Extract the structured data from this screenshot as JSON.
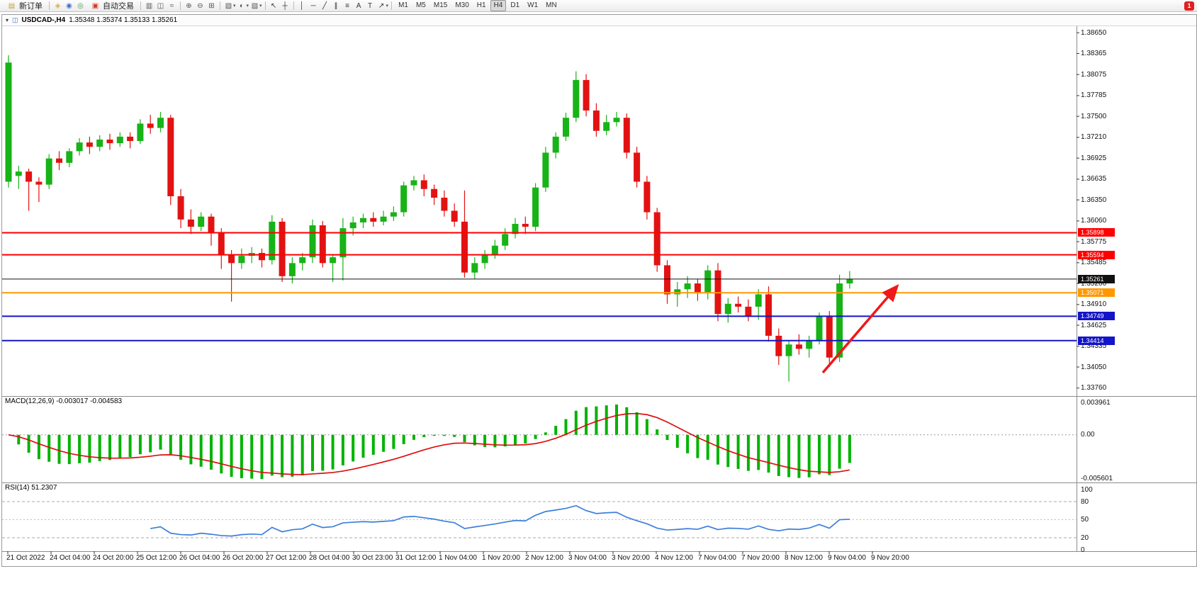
{
  "toolbar": {
    "items": [
      {
        "type": "button",
        "name": "new-order-button",
        "icon": "new-order-icon",
        "glyph": "▤",
        "color": "#c9a13b",
        "label": "新订单"
      },
      {
        "type": "sep"
      },
      {
        "type": "icon",
        "name": "metaeditor-icon",
        "glyph": "◈",
        "color": "#d9b23a"
      },
      {
        "type": "icon",
        "name": "market-watch-icon",
        "glyph": "◉",
        "color": "#3f6fd0"
      },
      {
        "type": "icon",
        "name": "data-window-icon",
        "glyph": "◎",
        "color": "#4a9e4a"
      },
      {
        "type": "button",
        "name": "autotrading-button",
        "icon": "autotrading-icon",
        "glyph": "▣",
        "color": "#d23c2a",
        "label": "自动交易"
      },
      {
        "type": "sep"
      },
      {
        "type": "icon",
        "name": "bar-chart-icon",
        "glyph": "▥",
        "color": "#555555"
      },
      {
        "type": "icon",
        "name": "candlestick-chart-icon",
        "glyph": "◫",
        "color": "#555555"
      },
      {
        "type": "icon",
        "name": "line-chart-icon",
        "glyph": "≈",
        "color": "#555555"
      },
      {
        "type": "sep"
      },
      {
        "type": "icon",
        "name": "zoom-in-icon",
        "glyph": "⊕",
        "color": "#555555"
      },
      {
        "type": "icon",
        "name": "zoom-out-icon",
        "glyph": "⊖",
        "color": "#555555"
      },
      {
        "type": "icon",
        "name": "tile-windows-icon",
        "glyph": "⊞",
        "color": "#555555"
      },
      {
        "type": "sep"
      },
      {
        "type": "icon",
        "name": "new-chart-icon",
        "glyph": "▧",
        "color": "#555555",
        "caret": true
      },
      {
        "type": "icon",
        "name": "period-icon",
        "glyph": "◐",
        "color": "#555555",
        "caret": true
      },
      {
        "type": "icon",
        "name": "templates-icon",
        "glyph": "▨",
        "color": "#555555",
        "caret": true
      },
      {
        "type": "sep"
      },
      {
        "type": "icon",
        "name": "cursor-icon",
        "glyph": "↖",
        "color": "#333333"
      },
      {
        "type": "icon",
        "name": "crosshair-icon",
        "glyph": "┼",
        "color": "#333333"
      },
      {
        "type": "sep"
      },
      {
        "type": "icon",
        "name": "vertical-line-icon",
        "glyph": "│",
        "color": "#333333"
      },
      {
        "type": "icon",
        "name": "horizontal-line-icon",
        "glyph": "─",
        "color": "#333333"
      },
      {
        "type": "icon",
        "name": "trendline-icon",
        "glyph": "╱",
        "color": "#333333"
      },
      {
        "type": "icon",
        "name": "channel-icon",
        "glyph": "∥",
        "color": "#333333"
      },
      {
        "type": "icon",
        "name": "fibonacci-icon",
        "glyph": "≡",
        "color": "#333333"
      },
      {
        "type": "icon",
        "name": "text-icon",
        "glyph": "A",
        "color": "#333333"
      },
      {
        "type": "icon",
        "name": "label-icon",
        "glyph": "T",
        "color": "#333333"
      },
      {
        "type": "icon",
        "name": "arrows-icon",
        "glyph": "↗",
        "color": "#333333",
        "caret": true
      },
      {
        "type": "sep"
      }
    ],
    "timeframes": [
      "M1",
      "M5",
      "M15",
      "M30",
      "H1",
      "H4",
      "D1",
      "W1",
      "MN"
    ],
    "active_timeframe": "H4",
    "notification": {
      "name": "alert-icon",
      "label": "1",
      "color": "#e02020"
    }
  },
  "chart": {
    "title": "USDCAD-,H4",
    "ohlc": "1.35348 1.35374 1.35133 1.35261"
  },
  "price_axis": {
    "ticks": [
      "1.38650",
      "1.38365",
      "1.38075",
      "1.37785",
      "1.37500",
      "1.37210",
      "1.36925",
      "1.36635",
      "1.36350",
      "1.36060",
      "1.35775",
      "1.35485",
      "1.35200",
      "1.34910",
      "1.34625",
      "1.34335",
      "1.34050",
      "1.33760"
    ]
  },
  "levels": [
    {
      "price": "1.35898",
      "value": 1.35898,
      "color": "#ff0000",
      "kind": "resistance-line"
    },
    {
      "price": "1.35594",
      "value": 1.35594,
      "color": "#ff0000",
      "kind": "resistance-line"
    },
    {
      "price": "1.35261",
      "value": 1.35261,
      "color": "#111111",
      "kind": "current-price-line"
    },
    {
      "price": "1.35071",
      "value": 1.35071,
      "color": "#ff9800",
      "kind": "pivot-line"
    },
    {
      "price": "1.34749",
      "value": 1.34749,
      "color": "#1414c8",
      "kind": "support-line"
    },
    {
      "price": "1.34414",
      "value": 1.34414,
      "color": "#1414c8",
      "kind": "support-line"
    }
  ],
  "indicators": {
    "macd": {
      "label": "MACD(12,26,9) -0.003017 -0.004583",
      "fast": 12,
      "slow": 26,
      "signal": 9,
      "value": -0.003017,
      "signal_value": -0.004583,
      "axis": [
        "0.003961",
        "0.00",
        "-0.005601"
      ],
      "range": [
        -0.005601,
        0.003961
      ],
      "histogram_color": "#00b300",
      "signal_color": "#dd0f0f"
    },
    "rsi": {
      "label": "RSI(14) 51.2307",
      "period": 14,
      "value": 51.2307,
      "axis": [
        "100",
        "80",
        "50",
        "20",
        "0"
      ],
      "levels": [
        80,
        50,
        20
      ],
      "line_color": "#3d7edb"
    }
  },
  "time_axis": [
    "21 Oct 2022",
    "24 Oct 04:00",
    "24 Oct 20:00",
    "25 Oct 12:00",
    "26 Oct 04:00",
    "26 Oct 20:00",
    "27 Oct 12:00",
    "28 Oct 04:00",
    "30 Oct 23:00",
    "31 Oct 12:00",
    "1 Nov 04:00",
    "1 Nov 20:00",
    "2 Nov 12:00",
    "3 Nov 04:00",
    "3 Nov 20:00",
    "4 Nov 12:00",
    "7 Nov 04:00",
    "7 Nov 20:00",
    "8 Nov 12:00",
    "9 Nov 04:00",
    "9 Nov 20:00"
  ],
  "chart_data": {
    "type": "candlestick",
    "symbol": "USDCAD",
    "timeframe": "H4",
    "ylim": [
      1.3367,
      1.3874
    ],
    "up_color": "#17b317",
    "down_color": "#e31212",
    "candles": [
      [
        1.366,
        1.3834,
        1.3652,
        1.3824
      ],
      [
        1.3668,
        1.3682,
        1.365,
        1.3674
      ],
      [
        1.3674,
        1.3678,
        1.362,
        1.366
      ],
      [
        1.366,
        1.3666,
        1.3632,
        1.3656
      ],
      [
        1.3656,
        1.3698,
        1.365,
        1.3692
      ],
      [
        1.3692,
        1.3702,
        1.3676,
        1.3686
      ],
      [
        1.3686,
        1.3706,
        1.368,
        1.3702
      ],
      [
        1.3702,
        1.372,
        1.3696,
        1.3714
      ],
      [
        1.3714,
        1.3722,
        1.3698,
        1.3708
      ],
      [
        1.3708,
        1.3724,
        1.3702,
        1.3718
      ],
      [
        1.3718,
        1.3726,
        1.3704,
        1.3713
      ],
      [
        1.3713,
        1.3728,
        1.3708,
        1.3722
      ],
      [
        1.3722,
        1.3728,
        1.3706,
        1.3716
      ],
      [
        1.3716,
        1.3746,
        1.3712,
        1.374
      ],
      [
        1.374,
        1.3752,
        1.3726,
        1.3734
      ],
      [
        1.3734,
        1.3756,
        1.3728,
        1.3748
      ],
      [
        1.3748,
        1.3752,
        1.3628,
        1.364
      ],
      [
        1.364,
        1.365,
        1.3596,
        1.3608
      ],
      [
        1.3608,
        1.3622,
        1.3588,
        1.3598
      ],
      [
        1.3598,
        1.3618,
        1.3592,
        1.3612
      ],
      [
        1.3612,
        1.3616,
        1.3572,
        1.359
      ],
      [
        1.359,
        1.3596,
        1.354,
        1.356
      ],
      [
        1.356,
        1.3566,
        1.3495,
        1.3548
      ],
      [
        1.3548,
        1.3568,
        1.354,
        1.3558
      ],
      [
        1.3558,
        1.357,
        1.3548,
        1.3562
      ],
      [
        1.3562,
        1.3568,
        1.3542,
        1.3552
      ],
      [
        1.3552,
        1.3614,
        1.3546,
        1.3605
      ],
      [
        1.3605,
        1.361,
        1.3522,
        1.353
      ],
      [
        1.353,
        1.3556,
        1.352,
        1.3548
      ],
      [
        1.3548,
        1.3562,
        1.3538,
        1.3556
      ],
      [
        1.3556,
        1.3608,
        1.3548,
        1.36
      ],
      [
        1.36,
        1.3606,
        1.3542,
        1.3548
      ],
      [
        1.3548,
        1.356,
        1.3522,
        1.3556
      ],
      [
        1.3556,
        1.361,
        1.3524,
        1.3596
      ],
      [
        1.3596,
        1.3612,
        1.3586,
        1.3604
      ],
      [
        1.3604,
        1.3616,
        1.3596,
        1.361
      ],
      [
        1.361,
        1.3618,
        1.3598,
        1.3605
      ],
      [
        1.3605,
        1.362,
        1.36,
        1.3612
      ],
      [
        1.3612,
        1.3626,
        1.3606,
        1.3618
      ],
      [
        1.3618,
        1.366,
        1.3612,
        1.3655
      ],
      [
        1.3655,
        1.3668,
        1.3648,
        1.3662
      ],
      [
        1.3662,
        1.367,
        1.364,
        1.365
      ],
      [
        1.365,
        1.3656,
        1.3628,
        1.3638
      ],
      [
        1.3638,
        1.3648,
        1.3612,
        1.362
      ],
      [
        1.362,
        1.363,
        1.3598,
        1.3605
      ],
      [
        1.3605,
        1.3648,
        1.3528,
        1.3535
      ],
      [
        1.3535,
        1.3556,
        1.3526,
        1.3548
      ],
      [
        1.3548,
        1.3566,
        1.354,
        1.356
      ],
      [
        1.356,
        1.358,
        1.3554,
        1.3572
      ],
      [
        1.3572,
        1.3596,
        1.3566,
        1.3588
      ],
      [
        1.3588,
        1.361,
        1.3582,
        1.3602
      ],
      [
        1.3602,
        1.3612,
        1.3588,
        1.3598
      ],
      [
        1.3598,
        1.3658,
        1.3592,
        1.3652
      ],
      [
        1.3652,
        1.3708,
        1.3646,
        1.37
      ],
      [
        1.37,
        1.3728,
        1.3692,
        1.3722
      ],
      [
        1.3722,
        1.3755,
        1.3716,
        1.3748
      ],
      [
        1.3748,
        1.3812,
        1.3742,
        1.38
      ],
      [
        1.38,
        1.3808,
        1.375,
        1.3758
      ],
      [
        1.3758,
        1.3768,
        1.3722,
        1.373
      ],
      [
        1.373,
        1.3752,
        1.3724,
        1.3742
      ],
      [
        1.3742,
        1.3756,
        1.3736,
        1.3748
      ],
      [
        1.3748,
        1.3754,
        1.3692,
        1.37
      ],
      [
        1.37,
        1.3708,
        1.3652,
        1.366
      ],
      [
        1.366,
        1.3668,
        1.3608,
        1.3618
      ],
      [
        1.3618,
        1.3624,
        1.3536,
        1.3545
      ],
      [
        1.3545,
        1.3552,
        1.3492,
        1.3505
      ],
      [
        1.3505,
        1.3522,
        1.3488,
        1.3512
      ],
      [
        1.3512,
        1.353,
        1.35,
        1.352
      ],
      [
        1.352,
        1.3526,
        1.3496,
        1.3508
      ],
      [
        1.3508,
        1.3545,
        1.3498,
        1.3538
      ],
      [
        1.3538,
        1.3548,
        1.3468,
        1.3478
      ],
      [
        1.3478,
        1.35,
        1.3466,
        1.3492
      ],
      [
        1.3492,
        1.3502,
        1.348,
        1.3488
      ],
      [
        1.3488,
        1.3498,
        1.3468,
        1.3475
      ],
      [
        1.3488,
        1.3512,
        1.347,
        1.3505
      ],
      [
        1.3505,
        1.3516,
        1.344,
        1.3448
      ],
      [
        1.3448,
        1.3458,
        1.3408,
        1.342
      ],
      [
        1.342,
        1.3442,
        1.3385,
        1.3436
      ],
      [
        1.3436,
        1.345,
        1.3422,
        1.343
      ],
      [
        1.343,
        1.3448,
        1.3418,
        1.3442
      ],
      [
        1.3442,
        1.348,
        1.3436,
        1.3475
      ],
      [
        1.3475,
        1.3482,
        1.3405,
        1.3418
      ],
      [
        1.3418,
        1.3532,
        1.3412,
        1.352
      ],
      [
        1.352,
        1.3537,
        1.3513,
        1.3526
      ]
    ]
  },
  "annotation_arrow": {
    "color": "#f01818",
    "from": [
      1158,
      489
    ],
    "to": [
      1262,
      368
    ]
  }
}
